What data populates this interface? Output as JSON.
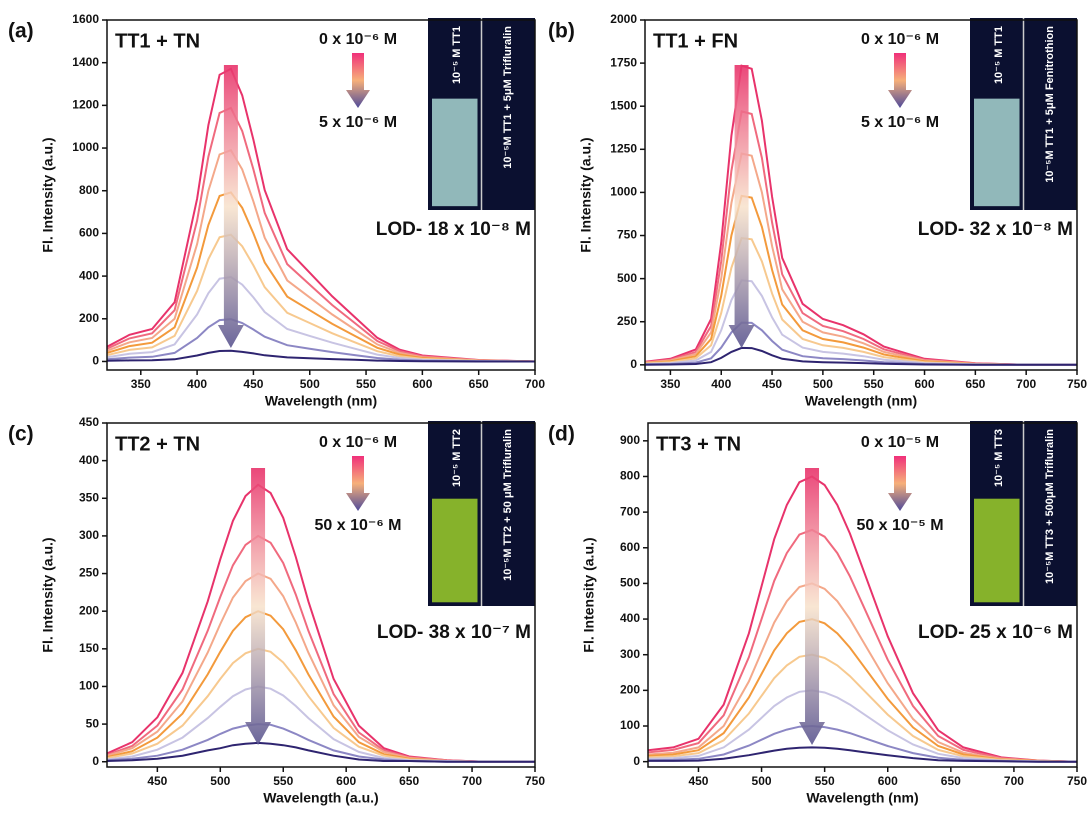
{
  "chart_data": [
    {
      "type": "line",
      "panel_label": "(a)",
      "title": "TT1 + TN",
      "conc_start": "0 x 10⁻⁶ M",
      "conc_end": "5 x 10⁻⁶ M",
      "lod": "LOD- 18 x 10⁻⁸ M",
      "inset_labels": [
        "10⁻⁵ M TT1",
        "10⁻⁵M TT1 + 5μM Trifluralin"
      ],
      "inset_color": "#a9d6d2",
      "x_label": "Wavelength (nm)",
      "y_label": "Fl. Intensity (a.u.)",
      "xlim": [
        320,
        700
      ],
      "xticks": [
        350,
        400,
        450,
        500,
        550,
        600,
        650,
        700
      ],
      "ylim": [
        -40,
        1600
      ],
      "yticks": [
        0,
        200,
        400,
        600,
        800,
        1000,
        1200,
        1400,
        1600
      ],
      "x": [
        320,
        340,
        360,
        380,
        400,
        410,
        420,
        430,
        440,
        450,
        460,
        480,
        500,
        520,
        540,
        560,
        580,
        600,
        650,
        700
      ],
      "series": [
        {
          "color": "#e8336b",
          "values": [
            69,
            125,
            152,
            277,
            762,
            1108,
            1343,
            1371,
            1247,
            1039,
            803,
            526,
            416,
            305,
            208,
            111,
            55,
            28,
            7,
            0
          ]
        },
        {
          "color": "#f06a7e",
          "values": [
            60,
            108,
            132,
            240,
            660,
            960,
            1164,
            1188,
            1080,
            900,
            696,
            456,
            360,
            264,
            180,
            96,
            48,
            24,
            6,
            0
          ]
        },
        {
          "color": "#f4a88a",
          "values": [
            50,
            90,
            110,
            200,
            550,
            800,
            970,
            990,
            900,
            750,
            580,
            380,
            300,
            220,
            150,
            80,
            40,
            20,
            5,
            0
          ]
        },
        {
          "color": "#f39a3c",
          "values": [
            40,
            72,
            88,
            160,
            440,
            640,
            776,
            792,
            720,
            600,
            464,
            304,
            240,
            176,
            120,
            64,
            32,
            16,
            4,
            0
          ]
        },
        {
          "color": "#f7c98f",
          "values": [
            30,
            54,
            66,
            120,
            330,
            480,
            582,
            594,
            540,
            450,
            348,
            228,
            180,
            132,
            90,
            48,
            24,
            12,
            3,
            0
          ]
        },
        {
          "color": "#c8c4e3",
          "values": [
            20,
            36,
            44,
            80,
            220,
            320,
            388,
            396,
            360,
            300,
            232,
            152,
            120,
            88,
            60,
            32,
            16,
            8,
            2,
            0
          ]
        },
        {
          "color": "#8c87c4",
          "values": [
            10,
            18,
            22,
            40,
            110,
            160,
            194,
            198,
            180,
            150,
            116,
            76,
            60,
            44,
            30,
            16,
            8,
            4,
            1,
            0
          ]
        },
        {
          "color": "#2e2470",
          "values": [
            3,
            5,
            6,
            10,
            28,
            40,
            49,
            50,
            45,
            38,
            29,
            19,
            15,
            11,
            8,
            4,
            2,
            1,
            0,
            0
          ]
        }
      ]
    },
    {
      "type": "line",
      "panel_label": "(b)",
      "title": "TT1 + FN",
      "conc_start": "0 x 10⁻⁶ M",
      "conc_end": "5 x 10⁻⁶ M",
      "lod": "LOD- 32 x 10⁻⁸ M",
      "inset_labels": [
        "10⁻⁵ M TT1",
        "10⁻⁵M TT1 + 5μM Fenitrothion"
      ],
      "inset_color": "#a9d6d2",
      "x_label": "Wavelength (nm)",
      "y_label": "Fl. Intensity (a.u.)",
      "xlim": [
        325,
        750
      ],
      "xticks": [
        350,
        400,
        450,
        500,
        550,
        600,
        650,
        700,
        750
      ],
      "ylim": [
        -30,
        2000
      ],
      "yticks": [
        0,
        250,
        500,
        750,
        1000,
        1250,
        1500,
        1750,
        2000
      ],
      "x": [
        325,
        350,
        375,
        390,
        400,
        410,
        420,
        430,
        440,
        450,
        460,
        480,
        500,
        520,
        540,
        560,
        600,
        650,
        700,
        750
      ],
      "series": [
        {
          "color": "#e8336b",
          "values": [
            18,
            35,
            89,
            266,
            708,
            1328,
            1735,
            1717,
            1416,
            974,
            620,
            354,
            266,
            230,
            177,
            106,
            35,
            9,
            0,
            0
          ]
        },
        {
          "color": "#f06a7e",
          "values": [
            15,
            30,
            75,
            225,
            600,
            1125,
            1470,
            1455,
            1200,
            825,
            525,
            300,
            225,
            195,
            150,
            90,
            30,
            8,
            0,
            0
          ]
        },
        {
          "color": "#f4a88a",
          "values": [
            13,
            25,
            63,
            188,
            500,
            938,
            1225,
            1213,
            1000,
            688,
            438,
            250,
            188,
            163,
            125,
            75,
            25,
            6,
            0,
            0
          ]
        },
        {
          "color": "#f39a3c",
          "values": [
            10,
            20,
            50,
            150,
            400,
            750,
            980,
            970,
            800,
            550,
            350,
            200,
            150,
            130,
            100,
            60,
            20,
            5,
            0,
            0
          ]
        },
        {
          "color": "#f7c98f",
          "values": [
            8,
            15,
            38,
            113,
            300,
            563,
            735,
            728,
            600,
            413,
            263,
            150,
            113,
            98,
            75,
            45,
            15,
            4,
            0,
            0
          ]
        },
        {
          "color": "#c8c4e3",
          "values": [
            5,
            10,
            25,
            75,
            200,
            375,
            490,
            485,
            400,
            275,
            175,
            100,
            75,
            65,
            50,
            30,
            10,
            3,
            0,
            0
          ]
        },
        {
          "color": "#8c87c4",
          "values": [
            3,
            5,
            13,
            38,
            100,
            188,
            245,
            243,
            200,
            138,
            88,
            50,
            38,
            33,
            25,
            15,
            5,
            1,
            0,
            0
          ]
        },
        {
          "color": "#2e2470",
          "values": [
            1,
            2,
            5,
            15,
            40,
            75,
            98,
            97,
            80,
            55,
            35,
            20,
            15,
            13,
            10,
            6,
            2,
            1,
            0,
            0
          ]
        }
      ]
    },
    {
      "type": "line",
      "panel_label": "(c)",
      "title": "TT2 + TN",
      "conc_start": "0 x 10⁻⁶ M",
      "conc_end": "50 x 10⁻⁶ M",
      "lod": "LOD- 38 x 10⁻⁷ M",
      "inset_labels": [
        "10⁻⁵ M TT2",
        "10⁻⁵M TT2 + 50 μM Trifluralin"
      ],
      "inset_color": "#9ccf2a",
      "x_label": "Wavelength (a.u.)",
      "y_label": "Fl. Intensity (a.u.)",
      "xlim": [
        410,
        750
      ],
      "xticks": [
        450,
        500,
        550,
        600,
        650,
        700,
        750
      ],
      "ylim": [
        -7,
        450
      ],
      "yticks": [
        0,
        50,
        100,
        150,
        200,
        250,
        300,
        350,
        400,
        450
      ],
      "x": [
        410,
        430,
        450,
        470,
        490,
        500,
        510,
        520,
        530,
        540,
        550,
        560,
        570,
        590,
        610,
        630,
        650,
        680,
        710,
        750
      ],
      "series": [
        {
          "color": "#e8336b",
          "values": [
            11,
            26,
            59,
            118,
            213,
            269,
            320,
            353,
            368,
            357,
            324,
            272,
            213,
            110,
            48,
            18,
            7,
            2,
            0,
            0
          ]
        },
        {
          "color": "#f06a7e",
          "values": [
            9,
            21,
            48,
            96,
            174,
            219,
            261,
            288,
            300,
            291,
            264,
            222,
            174,
            90,
            39,
            15,
            6,
            2,
            0,
            0
          ]
        },
        {
          "color": "#f4a88a",
          "values": [
            8,
            18,
            40,
            80,
            145,
            183,
            218,
            240,
            250,
            243,
            220,
            185,
            145,
            75,
            33,
            13,
            5,
            1,
            0,
            0
          ]
        },
        {
          "color": "#f39a3c",
          "values": [
            6,
            14,
            32,
            64,
            116,
            146,
            174,
            192,
            200,
            194,
            176,
            148,
            116,
            60,
            26,
            10,
            4,
            1,
            0,
            0
          ]
        },
        {
          "color": "#f7c98f",
          "values": [
            5,
            11,
            24,
            48,
            87,
            110,
            131,
            144,
            150,
            146,
            132,
            111,
            87,
            45,
            20,
            8,
            3,
            1,
            0,
            0
          ]
        },
        {
          "color": "#c8c4e3",
          "values": [
            3,
            7,
            16,
            32,
            58,
            73,
            87,
            96,
            100,
            97,
            88,
            74,
            58,
            30,
            13,
            5,
            2,
            1,
            0,
            0
          ]
        },
        {
          "color": "#8c87c4",
          "values": [
            2,
            4,
            8,
            16,
            29,
            37,
            44,
            48,
            50,
            49,
            44,
            37,
            29,
            15,
            7,
            3,
            1,
            0,
            0,
            0
          ]
        },
        {
          "color": "#2e2470",
          "values": [
            1,
            2,
            4,
            8,
            15,
            18,
            22,
            24,
            25,
            24,
            22,
            19,
            15,
            8,
            3,
            1,
            1,
            0,
            0,
            0
          ]
        }
      ]
    },
    {
      "type": "line",
      "panel_label": "(d)",
      "title": "TT3 + TN",
      "conc_start": "0 x 10⁻⁵ M",
      "conc_end": "50 x 10⁻⁵ M",
      "lod": "LOD- 25 x 10⁻⁶ M",
      "inset_labels": [
        "10⁻⁵ M TT3",
        "10⁻⁵M TT3 + 500μM Trifluralin"
      ],
      "inset_color": "#9ccf2a",
      "x_label": "Wavelength (nm)",
      "y_label": "Fl. Intensity (a.u.)",
      "xlim": [
        410,
        750
      ],
      "xticks": [
        450,
        500,
        550,
        600,
        650,
        700,
        750
      ],
      "ylim": [
        -15,
        950
      ],
      "yticks": [
        0,
        100,
        200,
        300,
        400,
        500,
        600,
        700,
        800,
        900
      ],
      "x": [
        410,
        430,
        450,
        470,
        490,
        510,
        520,
        530,
        540,
        550,
        560,
        570,
        580,
        600,
        620,
        640,
        660,
        690,
        720,
        750
      ],
      "series": [
        {
          "color": "#e8336b",
          "values": [
            32,
            40,
            64,
            160,
            360,
            624,
            720,
            784,
            800,
            776,
            720,
            640,
            544,
            352,
            192,
            88,
            40,
            12,
            3,
            0
          ]
        },
        {
          "color": "#f06a7e",
          "values": [
            26,
            33,
            52,
            130,
            293,
            507,
            585,
            637,
            650,
            631,
            585,
            520,
            442,
            286,
            156,
            72,
            33,
            10,
            3,
            0
          ]
        },
        {
          "color": "#f4a88a",
          "values": [
            20,
            25,
            40,
            100,
            225,
            390,
            450,
            490,
            500,
            485,
            450,
            400,
            340,
            220,
            120,
            55,
            25,
            8,
            2,
            0
          ]
        },
        {
          "color": "#f39a3c",
          "values": [
            16,
            20,
            32,
            80,
            180,
            312,
            360,
            392,
            400,
            388,
            360,
            320,
            272,
            176,
            96,
            44,
            20,
            6,
            2,
            0
          ]
        },
        {
          "color": "#f7c98f",
          "values": [
            12,
            15,
            24,
            60,
            135,
            234,
            270,
            294,
            300,
            291,
            270,
            240,
            204,
            132,
            72,
            33,
            15,
            5,
            1,
            0
          ]
        },
        {
          "color": "#c8c4e3",
          "values": [
            8,
            10,
            16,
            40,
            90,
            156,
            180,
            196,
            200,
            194,
            180,
            160,
            136,
            88,
            48,
            22,
            10,
            3,
            1,
            0
          ]
        },
        {
          "color": "#8c87c4",
          "values": [
            4,
            5,
            8,
            20,
            45,
            78,
            90,
            98,
            100,
            97,
            90,
            80,
            68,
            44,
            24,
            11,
            5,
            2,
            0,
            0
          ]
        },
        {
          "color": "#2e2470",
          "values": [
            2,
            2,
            3,
            8,
            18,
            31,
            36,
            39,
            40,
            39,
            36,
            32,
            27,
            18,
            10,
            4,
            2,
            1,
            0,
            0
          ]
        }
      ]
    }
  ]
}
